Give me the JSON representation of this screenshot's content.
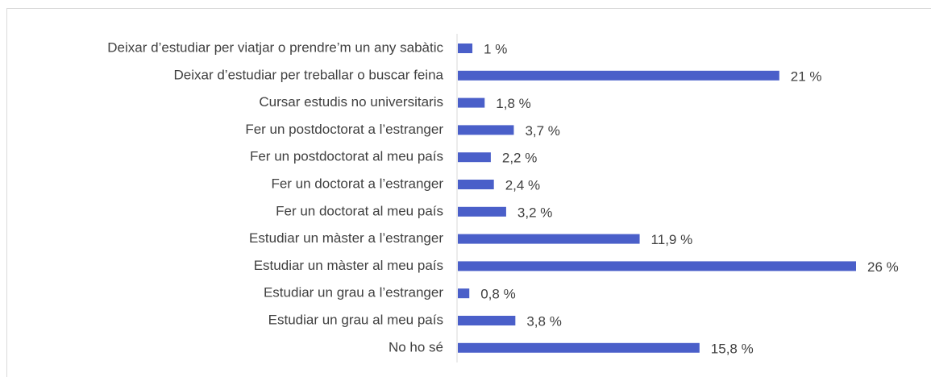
{
  "chart_data": {
    "type": "bar",
    "orientation": "horizontal",
    "categories": [
      "Deixar d’estudiar per viatjar o prendre’m un any sabàtic",
      "Deixar d’estudiar per treballar o buscar feina",
      "Cursar estudis no universitaris",
      "Fer un postdoctorat a l’estranger",
      "Fer un postdoctorat al meu país",
      "Fer un doctorat a l’estranger",
      "Fer un doctorat al meu país",
      "Estudiar un màster a l’estranger",
      "Estudiar un màster al meu país",
      "Estudiar un grau a l’estranger",
      "Estudiar un grau al meu país",
      "No ho sé"
    ],
    "values": [
      1,
      21,
      1.8,
      3.7,
      2.2,
      2.4,
      3.2,
      11.9,
      26,
      0.8,
      3.8,
      15.8
    ],
    "value_labels": [
      "1 %",
      "21 %",
      "1,8 %",
      "3,7 %",
      "2,2 %",
      "2,4 %",
      "3,2 %",
      "11,9 %",
      "26 %",
      "0,8 %",
      "3,8 %",
      "15,8 %"
    ],
    "color": "#4a5fc9"
  }
}
